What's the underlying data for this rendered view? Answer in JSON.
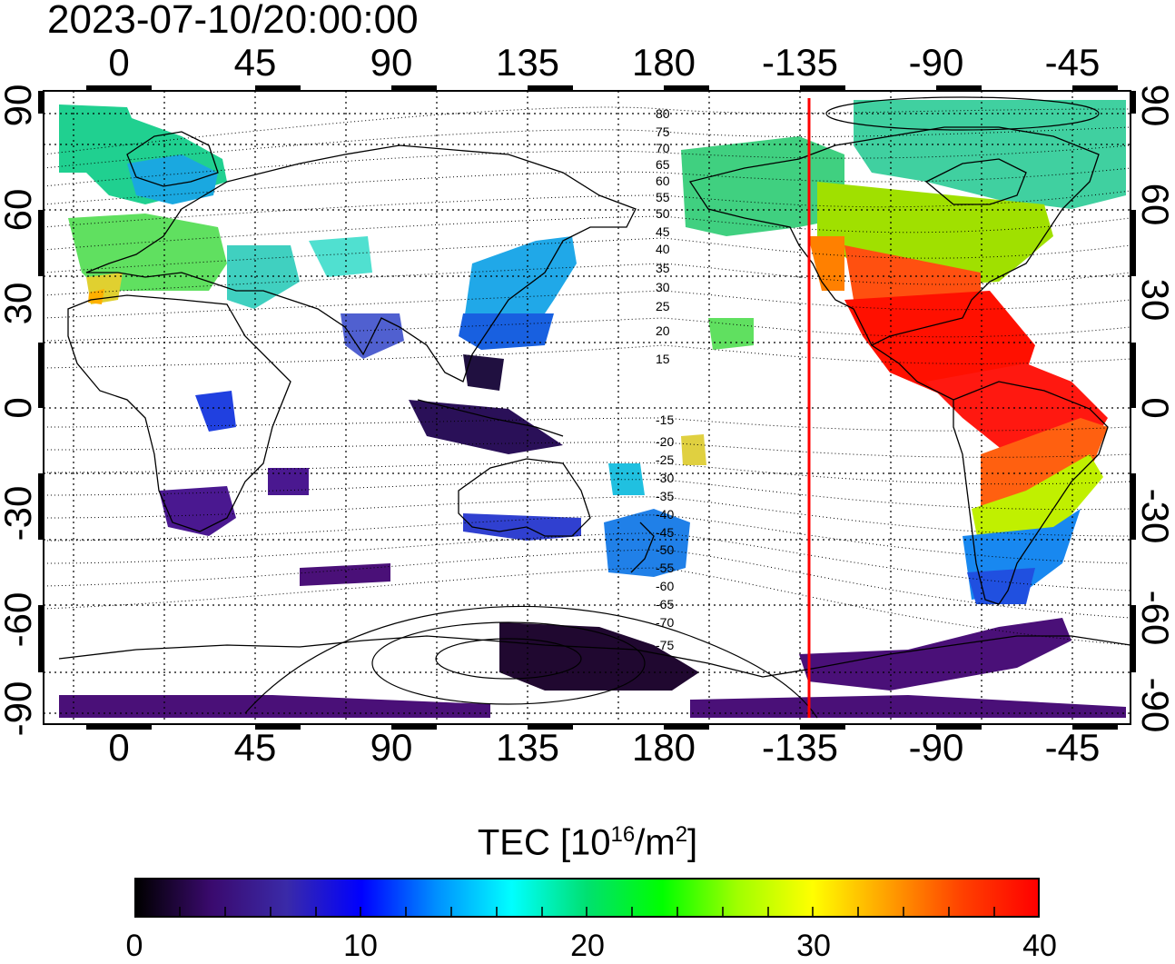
{
  "timestamp": "2023-07-10/20:00:00",
  "map": {
    "lon_ticks_top": [
      "0",
      "45",
      "90",
      "135",
      "180",
      "-135",
      "-90",
      "-45"
    ],
    "lon_ticks_bottom": [
      "0",
      "45",
      "90",
      "135",
      "180",
      "-135",
      "-90",
      "-45"
    ],
    "lat_ticks_left": [
      "90",
      "60",
      "30",
      "0",
      "-30",
      "-60",
      "-90"
    ],
    "lat_ticks_right": [
      "90",
      "60",
      "30",
      "0",
      "-30",
      "-60",
      "-90"
    ],
    "lon_values": [
      0,
      45,
      90,
      135,
      180,
      225,
      270,
      315
    ],
    "lat_values": [
      90,
      60,
      30,
      0,
      -30,
      -60,
      -90
    ],
    "lon_range": [
      -10,
      345
    ],
    "lat_range": [
      -92,
      92
    ],
    "grid": true,
    "contour_labels": [
      "80",
      "75",
      "70",
      "65",
      "60",
      "55",
      "50",
      "45",
      "40",
      "35",
      "30",
      "25",
      "20",
      "15",
      "-15",
      "-20",
      "-25",
      "-30",
      "-35",
      "-40",
      "-45",
      "-50",
      "-55",
      "-60",
      "-65",
      "-70",
      "-75"
    ],
    "marker_line_longitude": -120,
    "marker_line_color": "#ff0000"
  },
  "colorbar": {
    "title_prefix": "TEC  [10",
    "title_sup1": "16",
    "title_mid": "/m",
    "title_sup2": "2",
    "title_suffix": "]",
    "ticks": [
      "0",
      "10",
      "20",
      "30",
      "40"
    ],
    "min": 0,
    "max": 40,
    "colors": [
      "#000000",
      "#3a0a6e",
      "#3a2aa8",
      "#0000ff",
      "#0090ff",
      "#00ffff",
      "#00e070",
      "#00ff00",
      "#a0ff00",
      "#ffff00",
      "#ffa000",
      "#ff4000",
      "#ff0000"
    ]
  }
}
